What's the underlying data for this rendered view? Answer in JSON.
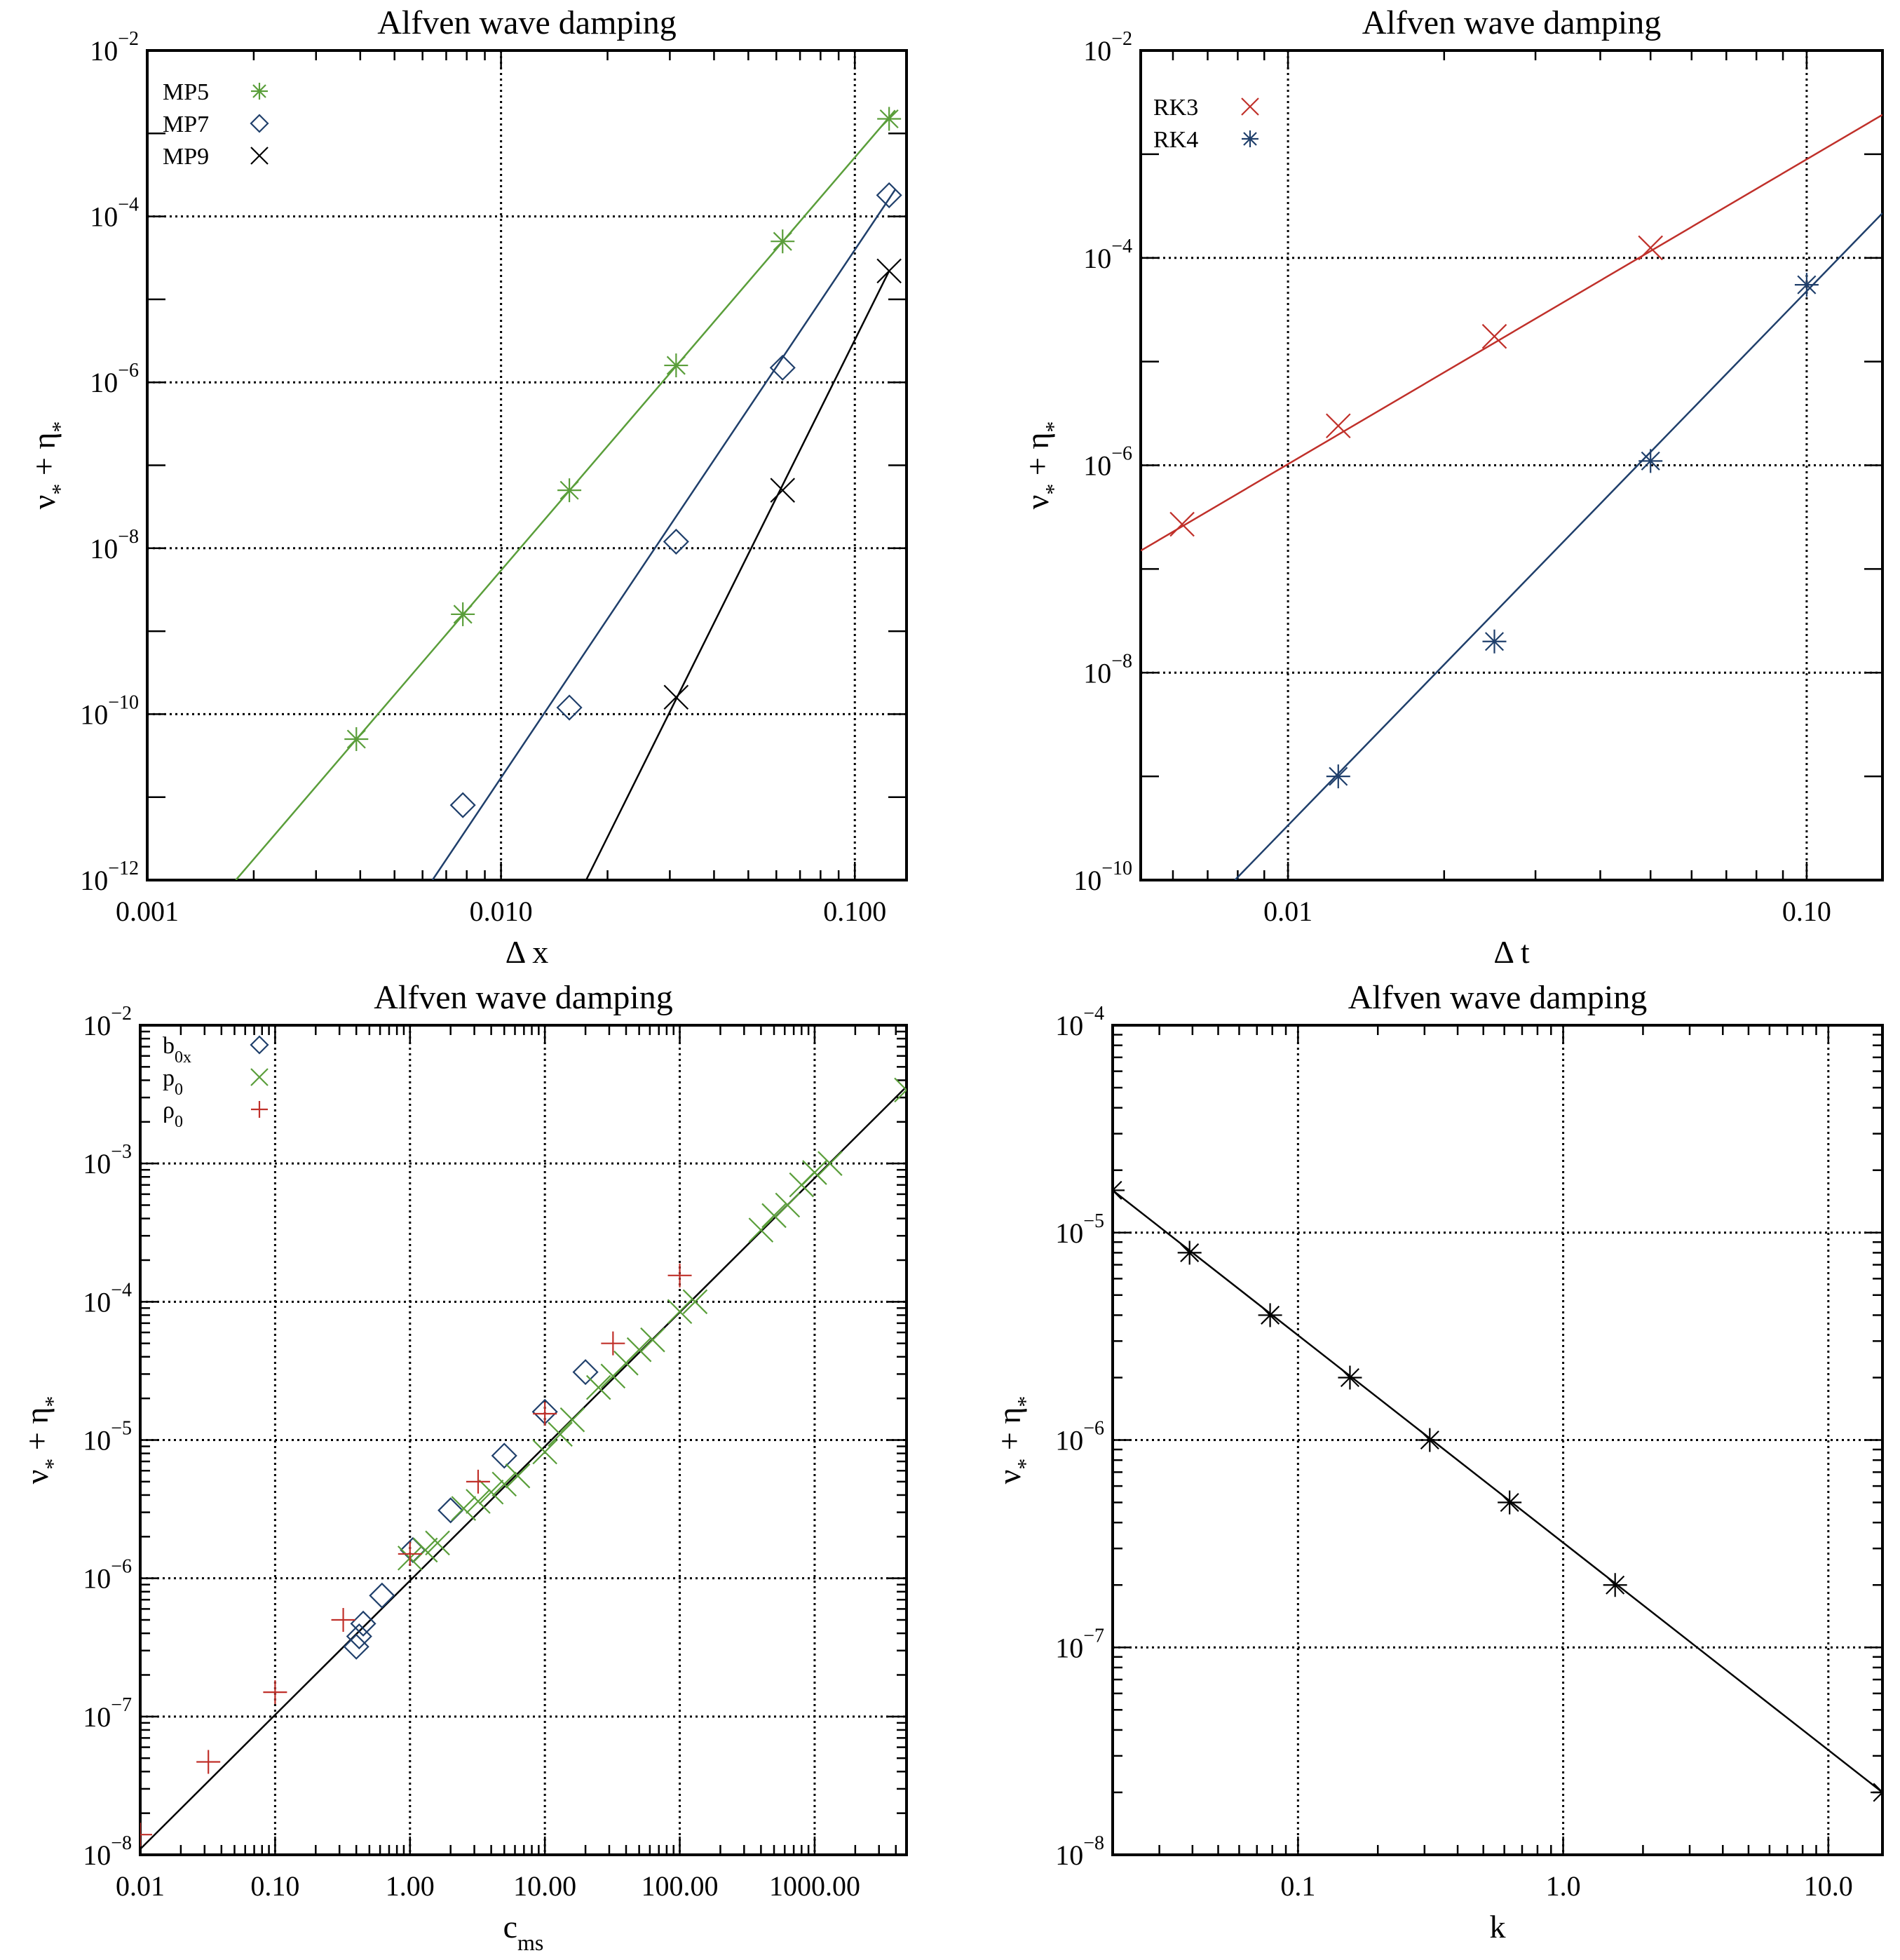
{
  "colors": {
    "green": "#5a9e3a",
    "blue": "#1f3f6b",
    "black": "#000000",
    "red": "#c0302a",
    "lightblue": "#4a6a9a"
  },
  "chart_data": [
    {
      "type": "scatter",
      "title": "Alfven wave damping",
      "xlabel": "Δ x",
      "ylabel": "ν* + η*",
      "xscale": "log",
      "yscale": "log",
      "xlim": [
        0.001,
        0.14
      ],
      "ylim": [
        1e-12,
        0.01
      ],
      "xticks": [
        {
          "v": 0.001,
          "label": "0.001"
        },
        {
          "v": 0.01,
          "label": "0.010"
        },
        {
          "v": 0.1,
          "label": "0.100"
        }
      ],
      "yticks": [
        {
          "e": -12
        },
        {
          "e": -10
        },
        {
          "e": -8
        },
        {
          "e": -6
        },
        {
          "e": -4
        },
        {
          "e": -2
        }
      ],
      "grid_x": [
        0.001,
        0.01,
        0.1
      ],
      "grid_y": [
        1e-10,
        1e-08,
        1e-06,
        0.0001
      ],
      "legend_position": "top-left",
      "series": [
        {
          "name": "MP5",
          "marker": "asterisk",
          "color": "green",
          "x": [
            0.0039,
            0.0078,
            0.0156,
            0.03125,
            0.0625,
            0.125
          ],
          "y": [
            5e-11,
            1.6e-09,
            5e-08,
            1.6e-06,
            5e-05,
            0.0015
          ],
          "fit": [
            [
              0.00178,
              1e-12
            ],
            [
              0.13,
              0.0019
            ]
          ]
        },
        {
          "name": "MP7",
          "marker": "diamond",
          "color": "blue",
          "x": [
            0.0078,
            0.0156,
            0.03125,
            0.0625,
            0.125
          ],
          "y": [
            8e-12,
            1.2e-10,
            1.2e-08,
            1.5e-06,
            0.00018
          ],
          "fit": [
            [
              0.0064,
              1e-12
            ],
            [
              0.13,
              0.00021
            ]
          ]
        },
        {
          "name": "MP9",
          "marker": "cross",
          "color": "black",
          "x": [
            0.03125,
            0.0625,
            0.125
          ],
          "y": [
            1.6e-10,
            5e-08,
            2.2e-05
          ],
          "fit": [
            [
              0.0174,
              1e-12
            ],
            [
              0.125,
              2.2e-05
            ]
          ]
        }
      ]
    },
    {
      "type": "scatter",
      "title": "Alfven wave damping",
      "xlabel": "Δ t",
      "ylabel": "ν* + η*",
      "xscale": "log",
      "yscale": "log",
      "xlim": [
        0.0052,
        0.14
      ],
      "ylim": [
        1e-10,
        0.01
      ],
      "xticks": [
        {
          "v": 0.01,
          "label": "0.01"
        },
        {
          "v": 0.1,
          "label": "0.10"
        }
      ],
      "yticks": [
        {
          "e": -10
        },
        {
          "e": -8
        },
        {
          "e": -6
        },
        {
          "e": -4
        },
        {
          "e": -2
        }
      ],
      "grid_x": [
        0.01,
        0.1
      ],
      "grid_y": [
        1e-08,
        1e-06,
        0.0001
      ],
      "legend_position": "top-left",
      "series": [
        {
          "name": "RK3",
          "marker": "cross",
          "color": "red",
          "x": [
            0.00625,
            0.0125,
            0.025,
            0.05
          ],
          "y": [
            2.7e-07,
            2.4e-06,
            1.75e-05,
            0.000125
          ],
          "fit": [
            [
              0.0052,
              1.5e-07
            ],
            [
              0.14,
              0.0024
            ]
          ]
        },
        {
          "name": "RK4",
          "marker": "asterisk",
          "color": "blue",
          "x": [
            0.0125,
            0.025,
            0.05,
            0.1
          ],
          "y": [
            1e-09,
            2e-08,
            1.1e-06,
            5.5e-05
          ],
          "fit": [
            [
              0.0079,
              1e-10
            ],
            [
              0.14,
              0.00027
            ]
          ]
        }
      ]
    },
    {
      "type": "scatter",
      "title": "Alfven wave damping",
      "xlabel": "c_ms",
      "ylabel": "ν* + η*",
      "xscale": "log",
      "yscale": "log",
      "xlim": [
        0.01,
        4800
      ],
      "ylim": [
        1e-08,
        0.01
      ],
      "xticks": [
        {
          "v": 0.01,
          "label": "0.01"
        },
        {
          "v": 0.1,
          "label": "0.10"
        },
        {
          "v": 1,
          "label": "1.00"
        },
        {
          "v": 10,
          "label": "10.00"
        },
        {
          "v": 100,
          "label": "100.00"
        },
        {
          "v": 1000,
          "label": "1000.00"
        }
      ],
      "yticks": [
        {
          "e": -8
        },
        {
          "e": -7
        },
        {
          "e": -6
        },
        {
          "e": -5
        },
        {
          "e": -4
        },
        {
          "e": -3
        },
        {
          "e": -2
        }
      ],
      "grid_x": [
        0.1,
        1,
        10,
        100,
        1000
      ],
      "grid_y": [
        1e-07,
        1e-06,
        1e-05,
        0.0001,
        0.001
      ],
      "legend_position": "top-left",
      "series": [
        {
          "name": "b0x",
          "marker": "diamond",
          "color": "blue",
          "x": [
            0.4,
            0.42,
            0.45,
            0.62,
            1.05,
            2.0,
            5.0,
            10.0,
            20.0
          ],
          "y": [
            3.2e-07,
            3.8e-07,
            4.7e-07,
            7.5e-07,
            1.6e-06,
            3.1e-06,
            7.7e-06,
            1.6e-05,
            3.1e-05
          ]
        },
        {
          "name": "p0",
          "marker": "cross",
          "color": "green",
          "x": [
            1.0,
            1.3,
            1.6,
            2.5,
            3.2,
            4.0,
            5.0,
            6.3,
            10.0,
            13.0,
            16.0,
            25.0,
            32.0,
            40.0,
            50.0,
            63.0,
            100.0,
            130.0,
            400.0,
            500.0,
            630.0,
            800.0,
            1000.0,
            1300.0,
            4800.0
          ],
          "y": [
            1.4e-06,
            1.6e-06,
            1.8e-06,
            3.2e-06,
            3.6e-06,
            4.2e-06,
            4.8e-06,
            5.5e-06,
            8.2e-06,
            1.1e-05,
            1.4e-05,
            2.4e-05,
            2.9e-05,
            3.6e-05,
            4.5e-05,
            5.3e-05,
            8.5e-05,
            0.0001,
            0.00033,
            0.00042,
            0.0005,
            0.0007,
            0.00086,
            0.001,
            0.0034
          ]
        },
        {
          "name": "ρ0",
          "marker": "plus",
          "color": "red",
          "x": [
            0.01,
            0.032,
            0.1,
            0.32,
            1.0,
            3.2,
            10.0,
            32.0,
            100.0
          ],
          "y": [
            1.4e-08,
            4.7e-08,
            1.5e-07,
            5e-07,
            1.5e-06,
            5e-06,
            1.55e-05,
            5e-05,
            0.000155
          ]
        }
      ],
      "fit": [
        [
          0.01,
          1.1e-08
        ],
        [
          4800,
          0.0036
        ]
      ]
    },
    {
      "type": "scatter",
      "title": "Alfven wave damping",
      "xlabel": "k",
      "ylabel": "ν* + η*",
      "xscale": "log",
      "yscale": "log",
      "xlim": [
        0.02,
        16
      ],
      "ylim": [
        1e-08,
        0.0001
      ],
      "xticks": [
        {
          "v": 0.1,
          "label": "0.1"
        },
        {
          "v": 1,
          "label": "1.0"
        },
        {
          "v": 10,
          "label": "10.0"
        }
      ],
      "yticks": [
        {
          "e": -8
        },
        {
          "e": -7
        },
        {
          "e": -6
        },
        {
          "e": -5
        },
        {
          "e": -4
        }
      ],
      "grid_x": [
        0.1,
        1,
        10
      ],
      "grid_y": [
        1e-07,
        1e-06,
        1e-05
      ],
      "series": [
        {
          "name": "",
          "marker": "asterisk",
          "color": "black",
          "x": [
            0.02,
            0.039,
            0.0785,
            0.157,
            0.314,
            0.628,
            1.57,
            16.0
          ],
          "y": [
            1.6e-05,
            8e-06,
            4e-06,
            2e-06,
            1e-06,
            5e-07,
            2e-07,
            2e-08
          ]
        }
      ],
      "fit": [
        [
          0.02,
          1.6e-05
        ],
        [
          16,
          2e-08
        ]
      ]
    }
  ]
}
